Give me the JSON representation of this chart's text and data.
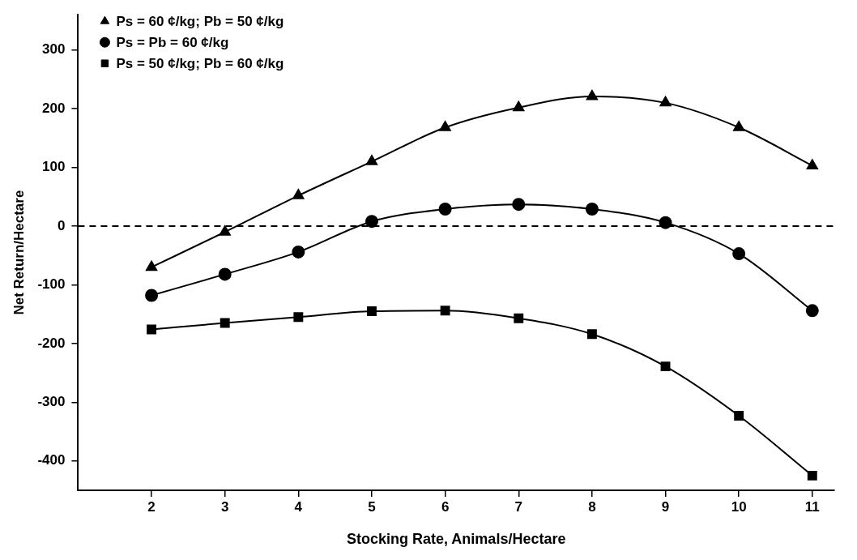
{
  "chart_data": {
    "type": "line",
    "xlabel": "Stocking Rate, Animals/Hectare",
    "ylabel": "Net Return/Hectare",
    "x": [
      2,
      3,
      4,
      5,
      6,
      7,
      8,
      9,
      10,
      11
    ],
    "series": [
      {
        "name": "Ps = 60 ¢/kg; Pb = 50 ¢/kg",
        "color": "#000000",
        "marker": "triangle",
        "values": [
          -70,
          -10,
          52,
          110,
          168,
          202,
          221,
          210,
          168,
          103
        ]
      },
      {
        "name": "Ps = Pb = 60 ¢/kg",
        "color": "#000000",
        "marker": "circle",
        "values": [
          -118,
          -82,
          -44,
          8,
          29,
          37,
          29,
          6,
          -47,
          -144
        ]
      },
      {
        "name": "Ps = 50 ¢/kg; Pb = 60 ¢/kg",
        "color": "#000000",
        "marker": "square",
        "values": [
          -176,
          -165,
          -155,
          -145,
          -144,
          -157,
          -184,
          -239,
          -323,
          -425
        ]
      }
    ],
    "xlim": [
      1,
      11.3
    ],
    "xticks": [
      2,
      3,
      4,
      5,
      6,
      7,
      8,
      9,
      10,
      11
    ],
    "ylim": [
      -450,
      360
    ],
    "yticks": [
      -400,
      -300,
      -200,
      -100,
      0,
      100,
      200,
      300
    ],
    "ref_lines": [
      {
        "axis": "y",
        "value": 0,
        "color": "#000000",
        "line_style": "dashed"
      }
    ],
    "grid": false,
    "legend": "top left",
    "line_style": "solid"
  }
}
